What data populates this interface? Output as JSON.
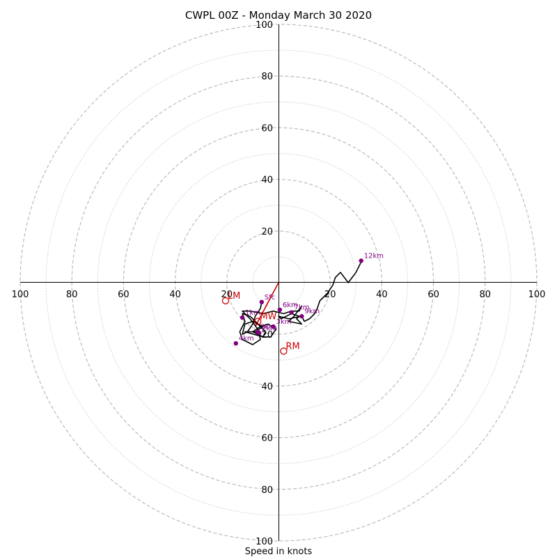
{
  "chart_data": {
    "type": "line",
    "title": "CWPL 00Z - Monday March 30 2020",
    "xlabel": "Speed in knots",
    "ring_labels": [
      "20",
      "40",
      "60",
      "80",
      "100"
    ],
    "axis_labels": {
      "top": [
        "20",
        "40",
        "60",
        "80",
        "100"
      ],
      "bottom": [
        "20",
        "40",
        "60",
        "80",
        "100"
      ],
      "left": [
        "20",
        "40",
        "60",
        "80",
        "100"
      ],
      "right": [
        "20",
        "40",
        "60",
        "80",
        "100"
      ]
    },
    "range": [
      -100,
      100
    ],
    "grid": {
      "major_rings": [
        20,
        40,
        60,
        80,
        100
      ],
      "minor_rings": [
        10,
        30,
        50,
        70,
        90
      ]
    },
    "colors": {
      "profile": "#000000",
      "markers": "#800080",
      "motion": "#cc0000",
      "grid": "#bbbbbb"
    },
    "hodograph": [
      [
        -6.5,
        -7.5
      ],
      [
        -7,
        -10
      ],
      [
        -9,
        -13
      ],
      [
        -10,
        -16
      ],
      [
        -12,
        -19
      ],
      [
        -14,
        -20
      ],
      [
        -13,
        -16
      ],
      [
        -10,
        -15
      ],
      [
        -6,
        -17
      ],
      [
        -9,
        -19
      ],
      [
        -13,
        -19
      ],
      [
        -6,
        -21
      ],
      [
        -3,
        -21
      ],
      [
        -1,
        -18
      ],
      [
        -4,
        -16
      ],
      [
        -7,
        -17
      ],
      [
        -10,
        -19
      ],
      [
        -6,
        -21
      ],
      [
        -5,
        -19
      ],
      [
        -7,
        -17
      ],
      [
        -9,
        -15
      ],
      [
        -11,
        -13
      ],
      [
        -14,
        -12
      ],
      [
        -13,
        -15
      ],
      [
        -15,
        -19
      ],
      [
        -14,
        -22
      ],
      [
        -10,
        -24
      ],
      [
        -7,
        -22
      ],
      [
        -8,
        -18
      ],
      [
        -11,
        -14
      ],
      [
        -14,
        -11
      ],
      [
        -11,
        -11
      ],
      [
        -6,
        -12
      ],
      [
        -2,
        -11
      ],
      [
        2,
        -12
      ],
      [
        5,
        -11
      ],
      [
        8,
        -11
      ],
      [
        9,
        -9
      ],
      [
        6,
        -13
      ],
      [
        4,
        -15
      ],
      [
        9,
        -16
      ],
      [
        7,
        -14
      ],
      [
        8,
        -13
      ],
      [
        5,
        -12
      ],
      [
        3,
        -13
      ],
      [
        1,
        -14
      ],
      [
        0,
        -13
      ],
      [
        4,
        -14
      ],
      [
        9,
        -13
      ],
      [
        10,
        -15
      ],
      [
        12,
        -14
      ],
      [
        14,
        -12
      ],
      [
        15,
        -10
      ],
      [
        16,
        -7
      ],
      [
        19,
        -4
      ],
      [
        21,
        -1
      ],
      [
        22,
        2
      ],
      [
        24,
        4
      ],
      [
        27,
        0
      ],
      [
        30,
        4
      ],
      [
        32,
        8
      ]
    ],
    "height_markers": [
      {
        "label": "Sfc",
        "x": -6.5,
        "y": -7.5
      },
      {
        "label": "1km",
        "x": -14,
        "y": -13.5
      },
      {
        "label": "2km",
        "x": -7.5,
        "y": -19.5
      },
      {
        "label": "3km",
        "x": -2,
        "y": -17
      },
      {
        "label": "4km",
        "x": -16.5,
        "y": -23.5
      },
      {
        "label": "5km",
        "x": -8,
        "y": -19
      },
      {
        "label": "6km",
        "x": 0.5,
        "y": -10.5
      },
      {
        "label": "7km",
        "x": 5,
        "y": -11.5
      },
      {
        "label": "9km",
        "x": 9,
        "y": -13
      },
      {
        "label": "12km",
        "x": 32,
        "y": 8.5
      }
    ],
    "storm_motion": [
      {
        "label": "LM",
        "x": -20.5,
        "y": -7
      },
      {
        "label": "MW",
        "x": -8,
        "y": -15
      },
      {
        "label": "RM",
        "x": 2,
        "y": -26.5
      }
    ],
    "red_vector": {
      "from": [
        0,
        0
      ],
      "to": [
        -9,
        -17
      ]
    }
  }
}
